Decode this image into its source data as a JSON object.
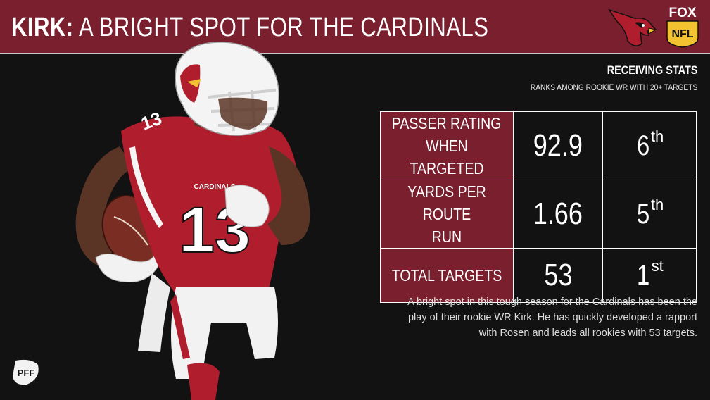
{
  "header": {
    "title_keyword": "KIRK:",
    "title_rest": "A BRIGHT SPOT FOR THE CARDINALS",
    "fox_text": "FOX",
    "nfl_text": "NFL"
  },
  "player": {
    "jersey_number": "13",
    "jersey_team": "CARDINALS"
  },
  "section": {
    "title": "RECEIVING STATS",
    "subtitle": "RANKS AMONG ROOKIE WR WITH 20+ TARGETS"
  },
  "stats": [
    {
      "label_line1": "PASSER RATING",
      "label_line2": "WHEN TARGETED",
      "value": "92.9",
      "rank_num": "6",
      "rank_suffix": "th"
    },
    {
      "label_line1": "YARDS PER ROUTE",
      "label_line2": "RUN",
      "value": "1.66",
      "rank_num": "5",
      "rank_suffix": "th"
    },
    {
      "label_line1": "TOTAL TARGETS",
      "label_line2": "",
      "value": "53",
      "rank_num": "1",
      "rank_suffix": "st"
    }
  ],
  "description": "A bright spot in this tough season for the Cardinals has been the play of their rookie WR Kirk. He has quickly developed a rapport with Rosen and leads all rookies with 53 targets.",
  "footer": {
    "brand": "PFF"
  },
  "colors": {
    "header_bg": "#7a1f2e",
    "label_bg": "#7a1f2e",
    "background": "#121212",
    "text": "#ffffff"
  }
}
